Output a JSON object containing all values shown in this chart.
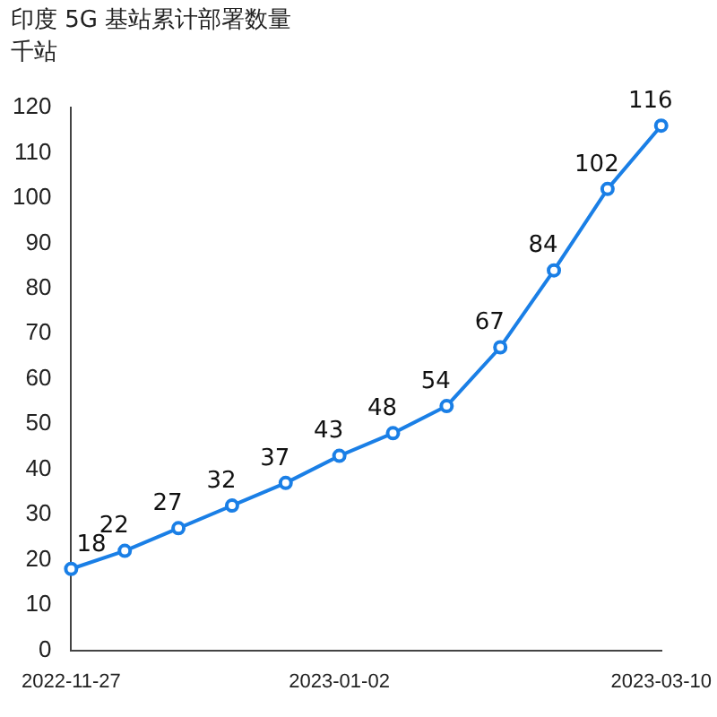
{
  "chart_data": {
    "type": "line",
    "title": "印度 5G 基站累计部署数量",
    "ylabel": "千站",
    "categories": [
      "2022-11-27",
      null,
      null,
      null,
      null,
      "2023-01-02",
      null,
      null,
      null,
      null,
      null,
      "2023-03-10"
    ],
    "series": [
      {
        "color": "#1a7fe6",
        "values": [
          18,
          22,
          27,
          32,
          37,
          43,
          48,
          54,
          67,
          84,
          102,
          116
        ]
      }
    ],
    "ylim": [
      0,
      120
    ],
    "yticks": [
      0,
      10,
      20,
      30,
      40,
      50,
      60,
      70,
      80,
      90,
      100,
      110,
      120
    ],
    "grid": false,
    "legend": false,
    "marker": "circle",
    "line_style": "solid",
    "data_labels": true
  }
}
